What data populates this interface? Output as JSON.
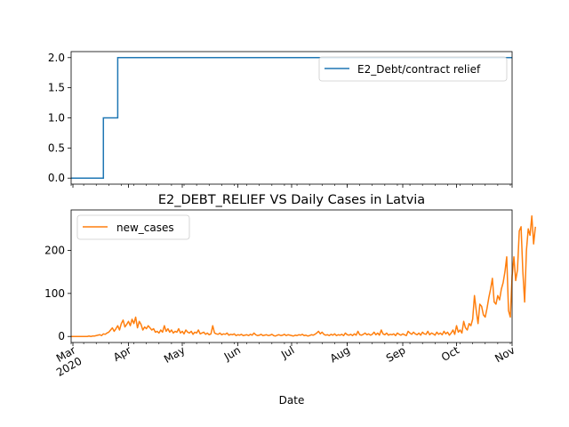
{
  "chart_data": [
    {
      "type": "line",
      "title": "",
      "xlabel": "",
      "ylabel": "",
      "ylim": [
        -0.1,
        2.1
      ],
      "yticks": [
        "0.0",
        "0.5",
        "1.0",
        "1.5",
        "2.0"
      ],
      "legend_placement": "top-right",
      "grid": false,
      "series": [
        {
          "name": "E2_Debt/contract relief",
          "color": "#1f77b4",
          "step_points": [
            {
              "date": "2020-02-29",
              "value": 0
            },
            {
              "date": "2020-03-18",
              "value": 0
            },
            {
              "date": "2020-03-18",
              "value": 1
            },
            {
              "date": "2020-03-26",
              "value": 1
            },
            {
              "date": "2020-03-26",
              "value": 2
            },
            {
              "date": "2020-11-01",
              "value": 2
            }
          ]
        }
      ]
    },
    {
      "type": "line",
      "title": "E2_DEBT_RELIEF VS Daily Cases in Latvia",
      "xlabel": "Date",
      "ylabel": "",
      "ylim": [
        -14,
        294
      ],
      "yticks": [
        "0",
        "100",
        "200"
      ],
      "legend_placement": "top-left",
      "grid": false,
      "x_tick_labels": [
        {
          "date": "2020-03-01",
          "label": "Mar",
          "sublabel": "2020"
        },
        {
          "date": "2020-04-01",
          "label": "Apr",
          "sublabel": ""
        },
        {
          "date": "2020-05-01",
          "label": "May",
          "sublabel": ""
        },
        {
          "date": "2020-06-01",
          "label": "Jun",
          "sublabel": ""
        },
        {
          "date": "2020-07-01",
          "label": "Jul",
          "sublabel": ""
        },
        {
          "date": "2020-08-01",
          "label": "Aug",
          "sublabel": ""
        },
        {
          "date": "2020-09-01",
          "label": "Sep",
          "sublabel": ""
        },
        {
          "date": "2020-10-01",
          "label": "Oct",
          "sublabel": ""
        },
        {
          "date": "2020-11-01",
          "label": "Nov",
          "sublabel": ""
        }
      ],
      "series": [
        {
          "name": "new_cases",
          "color": "#ff7f0e",
          "start_date": "2020-02-29",
          "values": [
            0,
            0,
            0,
            0,
            0,
            0,
            0,
            0,
            0,
            0,
            1,
            0,
            1,
            1,
            2,
            3,
            4,
            2,
            6,
            5,
            8,
            10,
            15,
            20,
            12,
            18,
            25,
            15,
            30,
            38,
            22,
            28,
            35,
            25,
            40,
            30,
            45,
            20,
            35,
            28,
            15,
            22,
            18,
            25,
            20,
            15,
            18,
            10,
            12,
            8,
            15,
            10,
            25,
            12,
            18,
            10,
            15,
            8,
            12,
            10,
            18,
            8,
            12,
            6,
            15,
            10,
            8,
            12,
            5,
            10,
            8,
            15,
            6,
            8,
            10,
            5,
            8,
            4,
            6,
            25,
            8,
            6,
            5,
            8,
            4,
            6,
            5,
            8,
            3,
            5,
            4,
            6,
            2,
            4,
            3,
            5,
            2,
            3,
            4,
            2,
            5,
            3,
            8,
            4,
            2,
            3,
            5,
            2,
            3,
            4,
            2,
            3,
            5,
            2,
            1,
            3,
            4,
            2,
            3,
            5,
            2,
            4,
            3,
            2,
            1,
            3,
            2,
            4,
            3,
            5,
            2,
            3,
            1,
            2,
            4,
            3,
            5,
            8,
            12,
            6,
            10,
            5,
            3,
            4,
            2,
            5,
            3,
            6,
            2,
            4,
            3,
            5,
            2,
            8,
            4,
            3,
            5,
            2,
            6,
            3,
            12,
            4,
            3,
            5,
            8,
            4,
            6,
            3,
            5,
            10,
            4,
            8,
            3,
            15,
            6,
            4,
            8,
            3,
            5,
            4,
            6,
            2,
            8,
            5,
            3,
            6,
            4,
            2,
            12,
            8,
            5,
            10,
            6,
            4,
            8,
            3,
            10,
            6,
            5,
            12,
            4,
            8,
            6,
            3,
            10,
            5,
            8,
            4,
            12,
            6,
            10,
            3,
            8,
            15,
            5,
            25,
            10,
            15,
            8,
            35,
            20,
            15,
            30,
            25,
            40,
            95,
            60,
            30,
            75,
            70,
            50,
            45,
            65,
            90,
            110,
            135,
            80,
            75,
            95,
            85,
            110,
            125,
            150,
            185,
            60,
            45,
            140,
            185,
            130,
            155,
            245,
            255,
            150,
            80,
            200,
            250,
            235,
            280,
            215,
            255
          ]
        }
      ]
    }
  ]
}
